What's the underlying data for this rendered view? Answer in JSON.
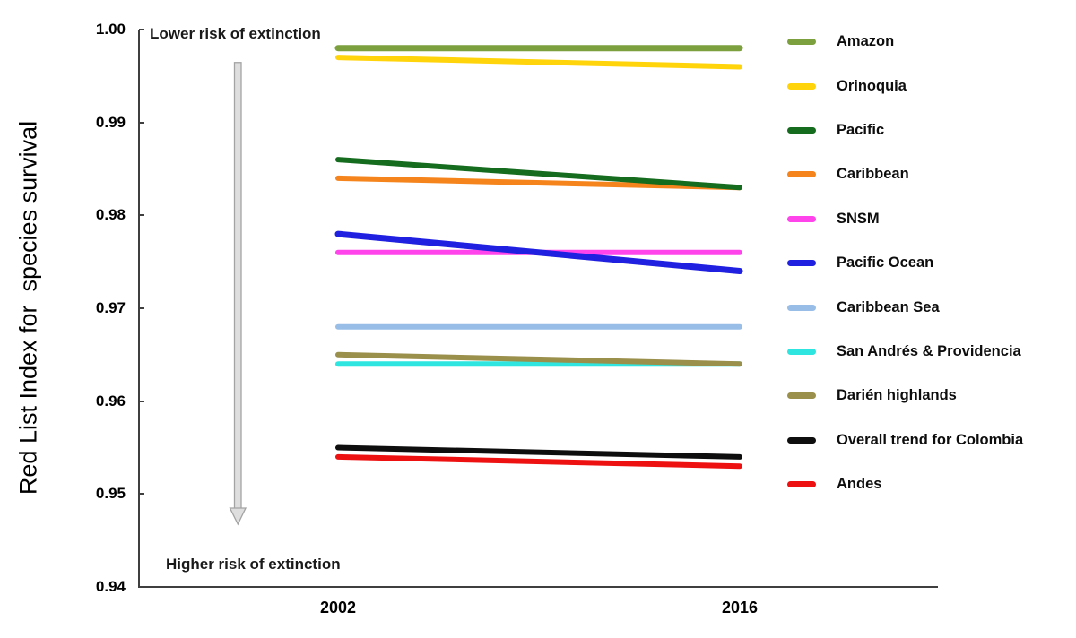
{
  "chart_data": {
    "type": "line",
    "title": "",
    "ylabel": "Red List Index for  species survival",
    "x": [
      2002,
      2016
    ],
    "x_tick_labels": [
      "2002",
      "2016"
    ],
    "y_ticks": [
      "1.00",
      "0.99",
      "0.98",
      "0.97",
      "0.96",
      "0.95",
      "0.94"
    ],
    "ylim": [
      0.94,
      1.0
    ],
    "grid": false,
    "legend_position": "right",
    "annotations": {
      "top": "Lower risk of extinction",
      "bottom": "Higher risk of extinction"
    },
    "arrow": {
      "direction": "down",
      "fill": "#dedede",
      "stroke": "#a3a3a3"
    },
    "series": [
      {
        "name": "Amazon",
        "color": "#7CA03E",
        "width": 7,
        "values": [
          0.998,
          0.998
        ]
      },
      {
        "name": "Orinoquia",
        "color": "#FFD40A",
        "width": 6,
        "values": [
          0.997,
          0.996
        ]
      },
      {
        "name": "Pacific",
        "color": "#156B1E",
        "width": 6,
        "values": [
          0.986,
          0.983
        ]
      },
      {
        "name": "Caribbean",
        "color": "#F5841C",
        "width": 6,
        "values": [
          0.984,
          0.983
        ]
      },
      {
        "name": "SNSM",
        "color": "#FF44EC",
        "width": 6,
        "values": [
          0.976,
          0.976
        ]
      },
      {
        "name": "Pacific Ocean",
        "color": "#2020E0",
        "width": 7,
        "values": [
          0.978,
          0.974
        ]
      },
      {
        "name": "Caribbean Sea",
        "color": "#98BEE8",
        "width": 6,
        "values": [
          0.968,
          0.968
        ]
      },
      {
        "name": "San Andrés & Providencia",
        "color": "#2FE5DF",
        "width": 6,
        "values": [
          0.964,
          0.964
        ]
      },
      {
        "name": "Darién highlands",
        "color": "#9B8F4C",
        "width": 6,
        "values": [
          0.965,
          0.964
        ]
      },
      {
        "name": "Overall trend for Colombia",
        "color": "#0E0E0E",
        "width": 6,
        "values": [
          0.955,
          0.954
        ]
      },
      {
        "name": "Andes",
        "color": "#EE1111",
        "width": 6,
        "values": [
          0.954,
          0.953
        ]
      }
    ]
  }
}
